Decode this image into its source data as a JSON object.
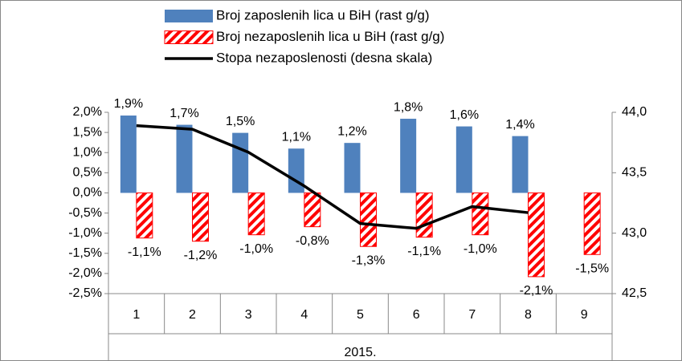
{
  "chart_data": {
    "type": "bar",
    "categories": [
      "1",
      "2",
      "3",
      "4",
      "5",
      "6",
      "7",
      "8",
      "9"
    ],
    "x_group_label": "2015.",
    "series": [
      {
        "name": "Broj zaposlenih lica u BiH (rast g/g)",
        "color": "#4f81bd",
        "pattern": "solid",
        "values": [
          1.92,
          1.69,
          1.49,
          1.1,
          1.24,
          1.84,
          1.65,
          1.41,
          null
        ],
        "value_labels": [
          "1,9%",
          "1,7%",
          "1,5%",
          "1,1%",
          "1,2%",
          "1,8%",
          "1,6%",
          "1,4%",
          null
        ]
      },
      {
        "name": "Broj nezaposlenih lica u BiH (rast g/g)",
        "color": "#ff0000",
        "pattern": "hatch",
        "values": [
          -1.12,
          -1.2,
          -1.04,
          -0.84,
          -1.33,
          -1.1,
          -1.04,
          -2.08,
          -1.53
        ],
        "value_labels": [
          "-1,1%",
          "-1,2%",
          "-1,0%",
          "-0,8%",
          "-1,3%",
          "-1,1%",
          "-1,0%",
          "-2,1%",
          "-1,5%"
        ]
      },
      {
        "name": "Stopa nezaposlenosti (desna skala)",
        "color": "#000000",
        "type": "line",
        "axis": "y2",
        "values": [
          43.89,
          43.86,
          43.67,
          43.39,
          43.08,
          43.04,
          43.22,
          43.17,
          null
        ]
      }
    ],
    "ylim": [
      -2.5,
      2.0
    ],
    "yticks": [
      {
        "value": 2.0,
        "label": "2,0%"
      },
      {
        "value": 1.5,
        "label": "1,5%"
      },
      {
        "value": 1.0,
        "label": "1,0%"
      },
      {
        "value": 0.5,
        "label": "0,5%"
      },
      {
        "value": 0.0,
        "label": "0,0%"
      },
      {
        "value": -0.5,
        "label": "-0,5%"
      },
      {
        "value": -1.0,
        "label": "-1,0%"
      },
      {
        "value": -1.5,
        "label": "-1,5%"
      },
      {
        "value": -2.0,
        "label": "-2,0%"
      },
      {
        "value": -2.5,
        "label": "-2,5%"
      }
    ],
    "y2lim": [
      42.5,
      44.0
    ],
    "y2ticks": [
      {
        "value": 44.0,
        "label": "44,0"
      },
      {
        "value": 43.5,
        "label": "43,5"
      },
      {
        "value": 43.0,
        "label": "43,0"
      },
      {
        "value": 42.5,
        "label": "42,5"
      }
    ],
    "grid": false,
    "legend": "top"
  }
}
